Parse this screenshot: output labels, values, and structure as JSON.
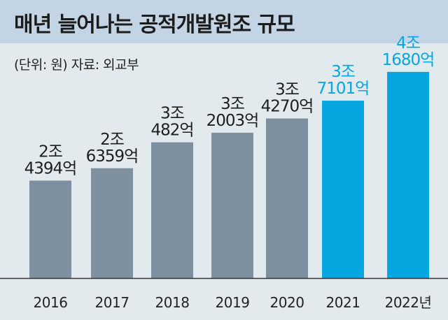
{
  "header": {
    "title": "매년 늘어나는 공적개발원조 규모",
    "subtitle": "(단위: 원) 자료: 외교부"
  },
  "colors": {
    "header_bg": "#c3d5e4",
    "page_bg": "#e3eaee",
    "bar_gray": "#7d909f",
    "bar_blue": "#06a6e0",
    "label_dark": "#1e1e1e",
    "label_blue": "#06a6e0"
  },
  "chart_data": {
    "type": "bar",
    "title": "매년 늘어나는 공적개발원조 규모",
    "subtitle": "(단위: 원) 자료: 외교부",
    "unit": "원",
    "categories": [
      "2016",
      "2017",
      "2018",
      "2019",
      "2020",
      "2021",
      "2022년"
    ],
    "values_eok": [
      24394,
      26359,
      30482,
      32003,
      34270,
      37101,
      41680
    ],
    "data_labels": [
      [
        "2조",
        "4394억"
      ],
      [
        "2조",
        "6359억"
      ],
      [
        "3조",
        "482억"
      ],
      [
        "3조",
        "2003억"
      ],
      [
        "3조",
        "4270억"
      ],
      [
        "3조",
        "7101억"
      ],
      [
        "4조",
        "1680억"
      ]
    ],
    "highlighted": [
      false,
      false,
      false,
      false,
      false,
      true,
      true
    ],
    "grid": false,
    "legend": "none"
  }
}
